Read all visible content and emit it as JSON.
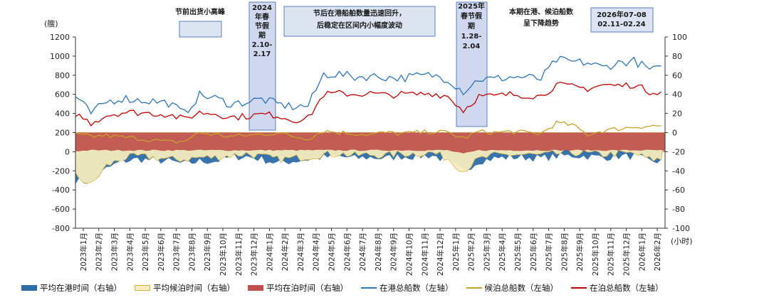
{
  "chart_data": {
    "type": "line",
    "left_axis": {
      "unit": "(艘)",
      "min": -800,
      "max": 1200,
      "step": 200,
      "ticks": [
        "1200",
        "1000",
        "800",
        "600",
        "400",
        "200",
        "0",
        "-200",
        "-400",
        "-600",
        "-800"
      ]
    },
    "right_axis": {
      "unit": "(小时)",
      "min": -100,
      "max": 100,
      "step": 20,
      "ticks": [
        "100",
        "80",
        "60",
        "40",
        "20",
        "0",
        "-20",
        "-40",
        "-60",
        "-80",
        "-100"
      ]
    },
    "x_ticks": [
      "2023年1月",
      "2023年2月",
      "2023年3月",
      "2023年4月",
      "2023年5月",
      "2023年6月",
      "2023年7月",
      "2023年8月",
      "2023年9月",
      "2023年10月",
      "2023年11月",
      "2023年12月",
      "2024年1月",
      "2024年2月",
      "2024年3月",
      "2024年4月",
      "2024年5月",
      "2024年6月",
      "2024年7月",
      "2024年8月",
      "2024年9月",
      "2024年10月",
      "2024年11月",
      "2024年12月",
      "2025年1月",
      "2025年2月",
      "2025年3月",
      "2025年4月",
      "2025年5月",
      "2025年6月",
      "2025年7月",
      "2025年8月",
      "2025年9月",
      "2025年10月",
      "2025年11月",
      "2025年12月",
      "2026年1月",
      "2026年2月"
    ],
    "series": [
      {
        "name": "平均在港时间（右轴）",
        "kind": "area",
        "axis": "right",
        "color": "#2e6ca8",
        "approx_monthly": [
          -50,
          -52,
          -38,
          -30,
          -28,
          -29,
          -30,
          -33,
          -30,
          -30,
          -26,
          -25,
          -28,
          -32,
          -30,
          -28,
          -26,
          -25,
          -27,
          -26,
          -27,
          -25,
          -25,
          -24,
          -30,
          -40,
          -30,
          -27,
          -26,
          -26,
          -27,
          -25,
          -24,
          -25,
          -26,
          -25,
          -25,
          -30
        ]
      },
      {
        "name": "平均候泊时间（右轴）",
        "kind": "area",
        "axis": "right",
        "color": "#f5ecc0",
        "border": "#d4b23c",
        "approx_monthly": [
          -45,
          -55,
          -35,
          -27,
          -25,
          -26,
          -28,
          -28,
          -26,
          -26,
          -24,
          -22,
          -25,
          -28,
          -27,
          -25,
          -23,
          -22,
          -24,
          -23,
          -24,
          -22,
          -22,
          -21,
          -27,
          -40,
          -28,
          -24,
          -23,
          -23,
          -24,
          -22,
          -21,
          -22,
          -23,
          -22,
          -22,
          -28
        ]
      },
      {
        "name": "平均在泊时间（右轴）",
        "kind": "area",
        "axis": "right",
        "color": "#c0504d",
        "approx_monthly": [
          -4,
          -3,
          -3,
          -3,
          -3,
          -3,
          -3,
          -3,
          -3,
          -3,
          -3,
          -3,
          -3,
          -3,
          -3,
          -3,
          -3,
          -3,
          -3,
          -3,
          -3,
          -3,
          -3,
          -3,
          -3,
          -8,
          -3,
          -3,
          -3,
          -3,
          -3,
          -3,
          -3,
          -3,
          -3,
          -3,
          -3,
          -3
        ]
      },
      {
        "name": "在港总船数（左轴）",
        "kind": "line",
        "axis": "left",
        "color": "#2e75b6",
        "approx_monthly": [
          580,
          400,
          520,
          560,
          540,
          530,
          510,
          400,
          590,
          560,
          500,
          520,
          550,
          500,
          470,
          480,
          810,
          810,
          780,
          790,
          780,
          770,
          790,
          800,
          760,
          630,
          760,
          760,
          780,
          780,
          760,
          960,
          940,
          930,
          880,
          930,
          950,
          860
        ]
      },
      {
        "name": "候泊总船数（左轴）",
        "kind": "line",
        "axis": "left",
        "color": "#c9a227",
        "approx_monthly": [
          180,
          160,
          170,
          150,
          140,
          120,
          100,
          110,
          200,
          180,
          160,
          170,
          180,
          200,
          160,
          140,
          220,
          200,
          190,
          180,
          200,
          190,
          200,
          210,
          200,
          140,
          210,
          200,
          210,
          200,
          190,
          300,
          280,
          180,
          220,
          240,
          260,
          270
        ]
      },
      {
        "name": "在泊总船数（左轴）",
        "kind": "line",
        "axis": "left",
        "color": "#c00000",
        "approx_monthly": [
          400,
          300,
          380,
          410,
          410,
          400,
          390,
          340,
          410,
          400,
          360,
          370,
          390,
          380,
          330,
          350,
          600,
          610,
          600,
          610,
          590,
          600,
          600,
          610,
          580,
          430,
          580,
          580,
          600,
          590,
          580,
          700,
          680,
          660,
          700,
          690,
          700,
          630
        ]
      }
    ]
  },
  "annotations": [
    {
      "text": "节前出货小高峰",
      "lines": [
        "节前出货小高峰"
      ]
    },
    {
      "text": "2024年春节假期2.10-2.17",
      "lines": [
        "2024",
        "年春",
        "节假",
        "期",
        "2.10-",
        "2.17"
      ]
    },
    {
      "text": "节后在港船舶数量迅速回升，后稳定在区间内小幅度波动",
      "lines": [
        "节后在港船舶数量迅速回升，",
        "后稳定在区间内小幅度波动"
      ]
    },
    {
      "text": "2025年春节假期1.28-2.04",
      "lines": [
        "2025年",
        "春节假",
        "期",
        "1.28-",
        "2.04"
      ]
    },
    {
      "text": "本期在港、候泊船数呈下降趋势",
      "lines": [
        "本期在港、候泊船数",
        "呈下降趋势"
      ]
    },
    {
      "text": "2026年07-08 02.11-02.24",
      "lines": [
        "2026年07-08",
        "02.11-02.24"
      ]
    }
  ]
}
